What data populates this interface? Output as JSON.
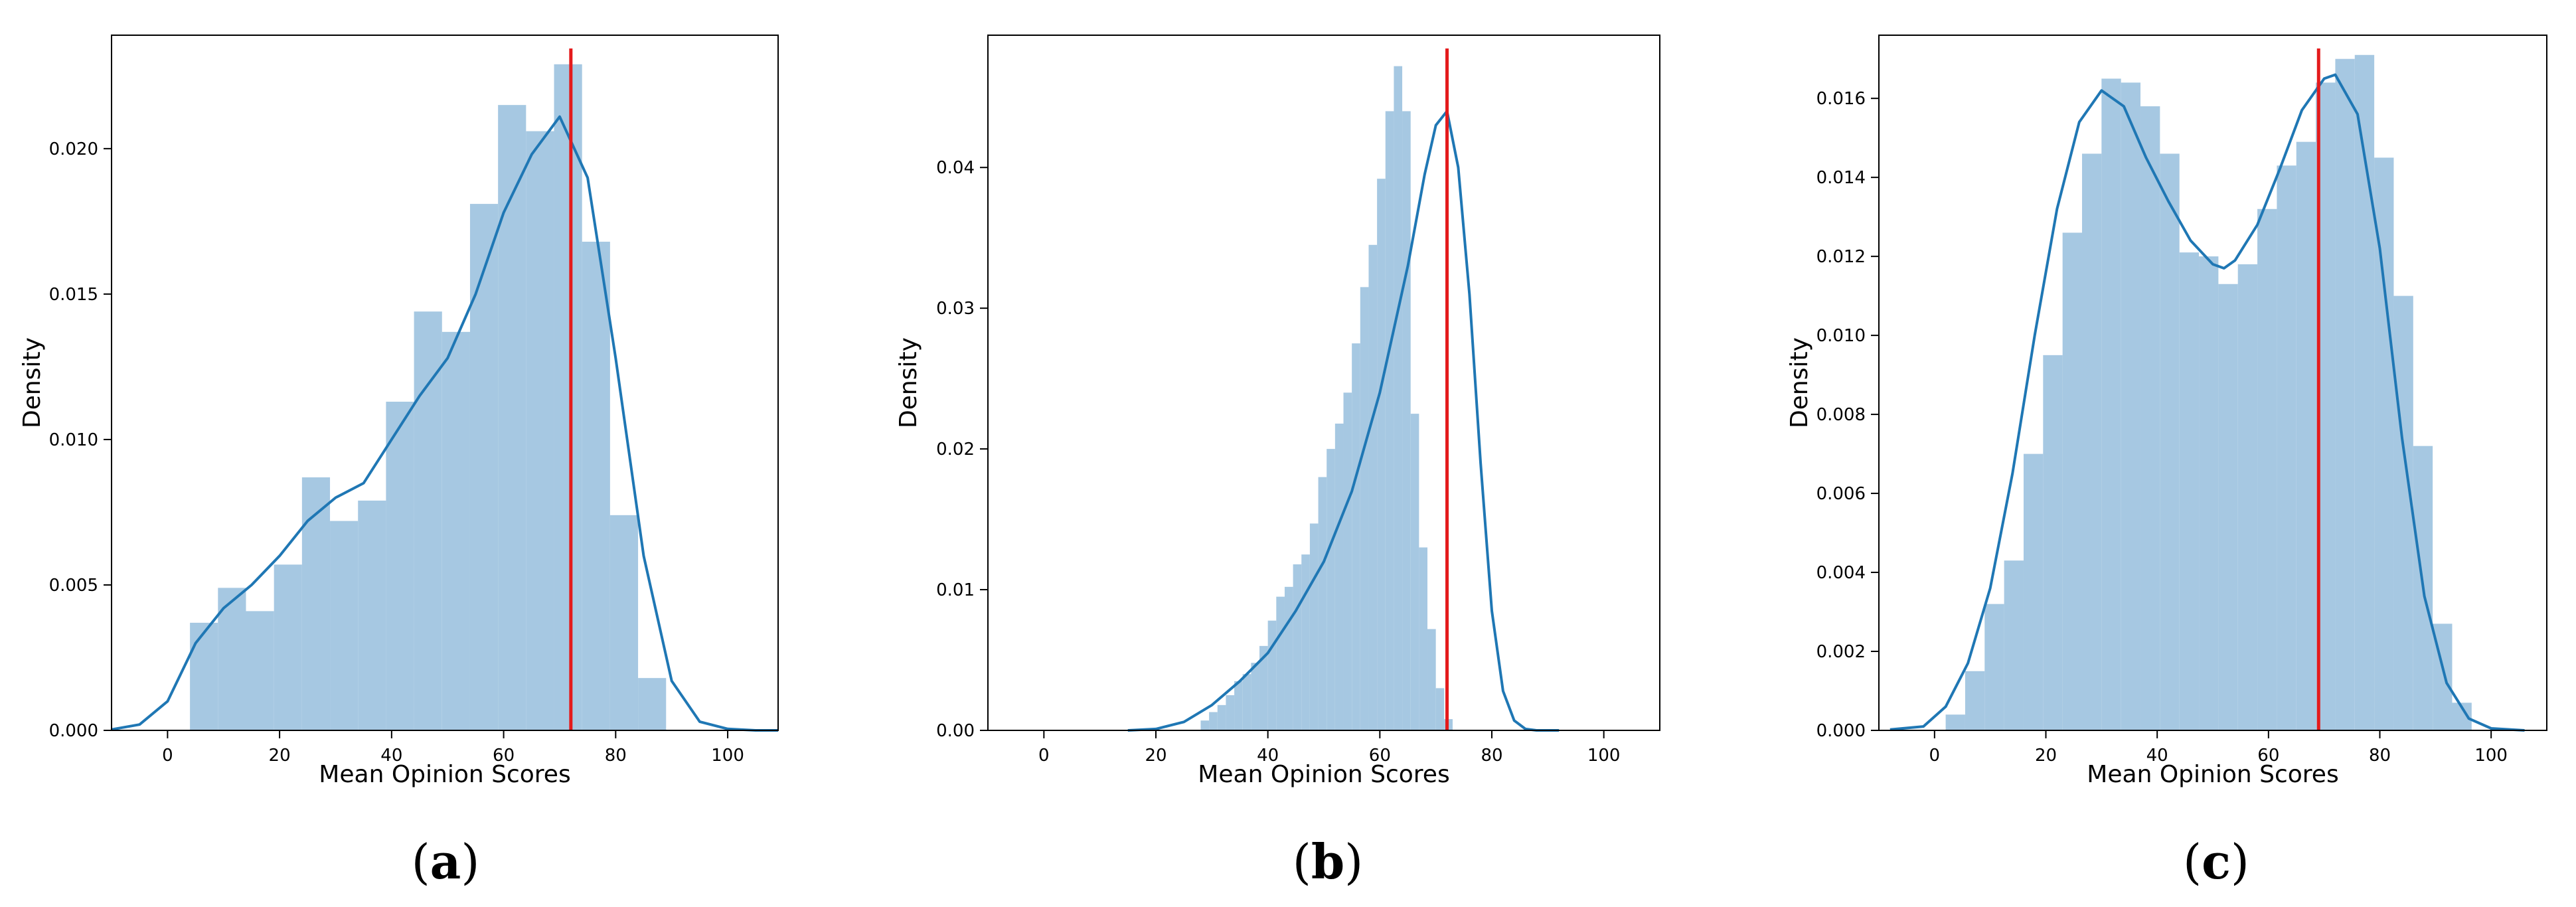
{
  "chart_data": [
    {
      "type": "bar",
      "panel_label": "a",
      "xlabel": "Mean Opinion Scores",
      "ylabel": "Density",
      "xlim": [
        -10,
        109
      ],
      "ylim": [
        0,
        0.0239
      ],
      "xticks": [
        0,
        20,
        40,
        60,
        80,
        100
      ],
      "yticks": [
        0.0,
        0.005,
        0.01,
        0.015,
        0.02
      ],
      "ytick_labels": [
        "0.000",
        "0.005",
        "0.010",
        "0.015",
        "0.020"
      ],
      "bin_start": 4,
      "bin_width": 5,
      "values": [
        0.0037,
        0.0049,
        0.0041,
        0.0057,
        0.0087,
        0.0072,
        0.0079,
        0.0113,
        0.0144,
        0.0137,
        0.0181,
        0.0215,
        0.0206,
        0.0229,
        0.0168,
        0.0074,
        0.0018
      ],
      "kde": {
        "x": [
          -10,
          -5,
          0,
          5,
          10,
          15,
          20,
          25,
          30,
          35,
          40,
          45,
          50,
          55,
          60,
          65,
          70,
          75,
          80,
          85,
          90,
          95,
          100,
          105,
          109
        ],
        "y": [
          3e-05,
          0.0002,
          0.001,
          0.003,
          0.0042,
          0.005,
          0.006,
          0.0072,
          0.008,
          0.0085,
          0.01,
          0.0115,
          0.0128,
          0.015,
          0.0178,
          0.0198,
          0.0211,
          0.019,
          0.0128,
          0.006,
          0.0017,
          0.0003,
          5e-05,
          0.0,
          0.0
        ]
      },
      "mean_line_x": 72,
      "hist_color": "#a6c8e2",
      "kde_color": "#1f77b4",
      "mean_color": "#e41a1c"
    },
    {
      "type": "bar",
      "panel_label": "b",
      "xlabel": "Mean Opinion Scores",
      "ylabel": "Density",
      "xlim": [
        -10,
        110
      ],
      "ylim": [
        0,
        0.0494
      ],
      "xticks": [
        0,
        20,
        40,
        60,
        80,
        100
      ],
      "yticks": [
        0.0,
        0.01,
        0.02,
        0.03,
        0.04
      ],
      "ytick_labels": [
        "0.00",
        "0.01",
        "0.02",
        "0.03",
        "0.04"
      ],
      "bin_start": 28,
      "bin_width": 1.5,
      "values": [
        0.0007,
        0.0013,
        0.0018,
        0.0025,
        0.0035,
        0.004,
        0.0048,
        0.006,
        0.0078,
        0.0095,
        0.0102,
        0.0118,
        0.0125,
        0.0147,
        0.018,
        0.02,
        0.0218,
        0.024,
        0.0275,
        0.0315,
        0.0345,
        0.0392,
        0.044,
        0.0472,
        0.044,
        0.0225,
        0.013,
        0.0072,
        0.003,
        0.0008
      ],
      "kde": {
        "x": [
          15,
          20,
          25,
          30,
          35,
          40,
          45,
          50,
          55,
          60,
          65,
          68,
          70,
          72,
          74,
          76,
          78,
          80,
          82,
          84,
          86,
          88,
          92
        ],
        "y": [
          0.0,
          0.0001,
          0.0006,
          0.0018,
          0.0035,
          0.0055,
          0.0085,
          0.012,
          0.017,
          0.024,
          0.033,
          0.0395,
          0.043,
          0.044,
          0.04,
          0.031,
          0.019,
          0.0085,
          0.0028,
          0.0007,
          0.0001,
          0.0,
          0.0
        ]
      },
      "mean_line_x": 72,
      "hist_color": "#a6c8e2",
      "kde_color": "#1f77b4",
      "mean_color": "#e41a1c"
    },
    {
      "type": "bar",
      "panel_label": "c",
      "xlabel": "Mean Opinion Scores",
      "ylabel": "Density",
      "xlim": [
        -10,
        110
      ],
      "ylim": [
        0,
        0.0176
      ],
      "xticks": [
        0,
        20,
        40,
        60,
        80,
        100
      ],
      "yticks": [
        0.0,
        0.002,
        0.004,
        0.006,
        0.008,
        0.01,
        0.012,
        0.014,
        0.016
      ],
      "ytick_labels": [
        "0.000",
        "0.002",
        "0.004",
        "0.006",
        "0.008",
        "0.010",
        "0.012",
        "0.014",
        "0.016"
      ],
      "bin_start": 2,
      "bin_width": 3.5,
      "values": [
        0.0004,
        0.0015,
        0.0032,
        0.0043,
        0.007,
        0.0095,
        0.0126,
        0.0146,
        0.0165,
        0.0164,
        0.0158,
        0.0146,
        0.0121,
        0.012,
        0.0113,
        0.0118,
        0.0132,
        0.0143,
        0.0149,
        0.0164,
        0.017,
        0.0171,
        0.0145,
        0.011,
        0.0072,
        0.0027,
        0.0007
      ],
      "kde": {
        "x": [
          -8,
          -2,
          2,
          6,
          10,
          14,
          18,
          22,
          26,
          30,
          34,
          38,
          42,
          46,
          50,
          52,
          54,
          58,
          62,
          66,
          70,
          72,
          76,
          80,
          84,
          88,
          92,
          96,
          100,
          106
        ],
        "y": [
          2e-05,
          0.0001,
          0.0006,
          0.0017,
          0.0036,
          0.0065,
          0.01,
          0.0132,
          0.0154,
          0.0162,
          0.0158,
          0.0145,
          0.0134,
          0.0124,
          0.0118,
          0.0117,
          0.0119,
          0.0128,
          0.0142,
          0.0157,
          0.0165,
          0.0166,
          0.0156,
          0.0122,
          0.0074,
          0.0034,
          0.0012,
          0.0003,
          5e-05,
          0.0
        ]
      },
      "mean_line_x": 69,
      "hist_color": "#a6c8e2",
      "kde_color": "#1f77b4",
      "mean_color": "#e41a1c"
    }
  ]
}
